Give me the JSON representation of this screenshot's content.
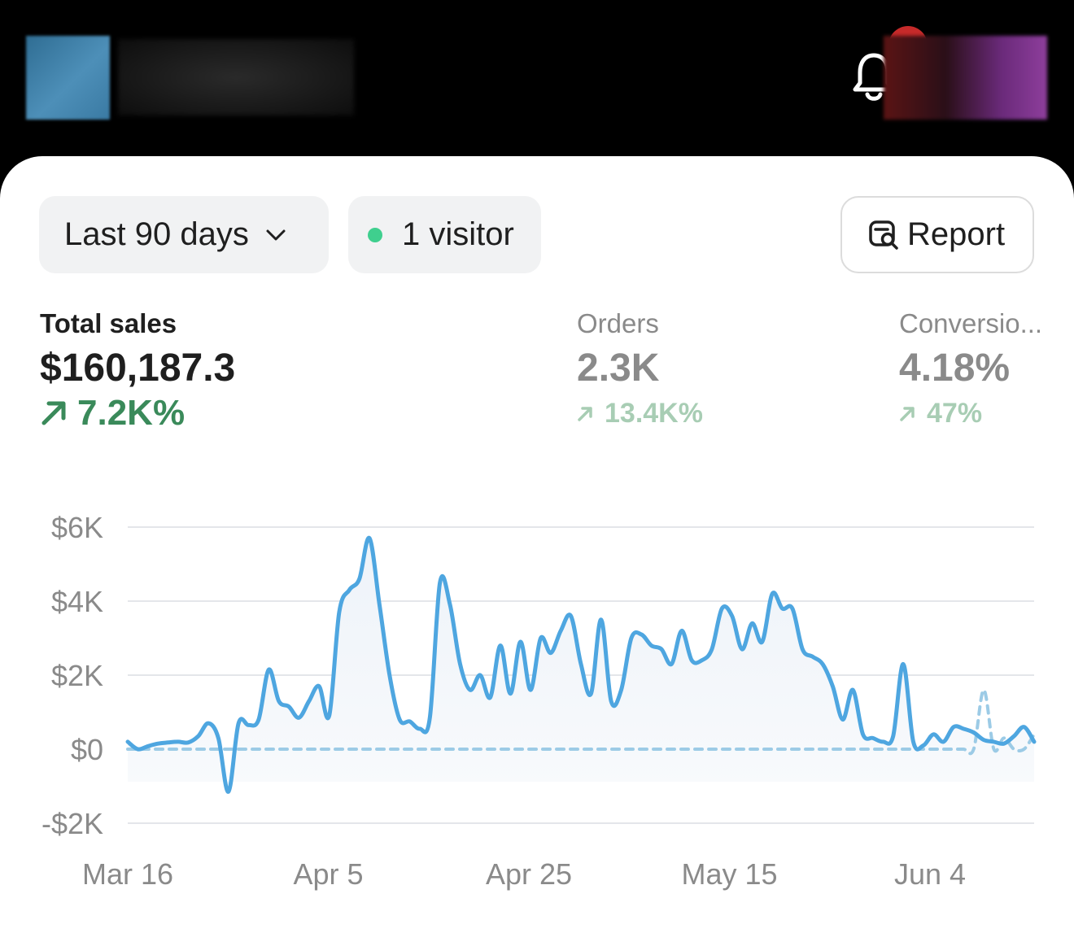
{
  "header": {
    "store_avatar_icon": "store-avatar-blurred",
    "bell_icon": "bell-icon",
    "account_avatar_icon": "account-avatar-blurred"
  },
  "filters": {
    "date_range": "Last 90 days",
    "visitors": "1 visitor",
    "report_label": "Report",
    "visitor_dot_color": "#3fcf8e"
  },
  "metrics": {
    "total_sales": {
      "label": "Total sales",
      "value": "$160,187.3",
      "delta": "7.2K%"
    },
    "orders": {
      "label": "Orders",
      "value": "2.3K",
      "delta": "13.4K%"
    },
    "conversion": {
      "label": "Conversio...",
      "value": "4.18%",
      "delta": "47%"
    }
  },
  "chart_data": {
    "type": "line",
    "x_tick_labels": [
      "Mar 16",
      "Apr 5",
      "Apr 25",
      "May 15",
      "Jun 4"
    ],
    "y_tick_labels": [
      "$6K",
      "$4K",
      "$2K",
      "$0",
      "-$2K"
    ],
    "ylim": [
      -2000,
      6000
    ],
    "y_ticks": [
      6000,
      4000,
      2000,
      0,
      -2000
    ],
    "grid": true,
    "series": [
      {
        "style": "solid",
        "color": "#4ea6e0",
        "values": [
          200,
          0,
          80,
          150,
          180,
          200,
          180,
          350,
          700,
          300,
          -1150,
          700,
          650,
          800,
          2150,
          1300,
          1150,
          850,
          1300,
          1700,
          900,
          3700,
          4300,
          4600,
          5700,
          3900,
          2000,
          800,
          750,
          550,
          850,
          4500,
          3900,
          2300,
          1600,
          2000,
          1400,
          2800,
          1500,
          2900,
          1600,
          3000,
          2600,
          3200,
          3600,
          2300,
          1500,
          3500,
          1300,
          1600,
          3000,
          3100,
          2800,
          2700,
          2300,
          3200,
          2400,
          2400,
          2700,
          3800,
          3600,
          2700,
          3400,
          2900,
          4200,
          3800,
          3800,
          2700,
          2500,
          2300,
          1700,
          800,
          1600,
          400,
          300,
          200,
          350,
          2300,
          200,
          100,
          400,
          200,
          600,
          550,
          450,
          250,
          200,
          150,
          350,
          600,
          200
        ]
      },
      {
        "style": "dashed",
        "color": "#9ccbe6",
        "values": [
          0,
          0,
          0,
          0,
          0,
          0,
          0,
          0,
          0,
          0,
          0,
          0,
          0,
          0,
          0,
          0,
          0,
          0,
          0,
          0,
          0,
          0,
          0,
          0,
          0,
          0,
          0,
          0,
          0,
          0,
          0,
          0,
          0,
          0,
          0,
          0,
          0,
          0,
          0,
          0,
          0,
          0,
          0,
          0,
          0,
          0,
          0,
          0,
          0,
          0,
          0,
          0,
          0,
          0,
          0,
          0,
          0,
          0,
          0,
          0,
          0,
          0,
          0,
          0,
          0,
          0,
          0,
          0,
          0,
          0,
          0,
          0,
          0,
          0,
          0,
          0,
          0,
          0,
          0,
          0,
          0,
          0,
          0,
          0,
          0,
          1600,
          0,
          300,
          0,
          0,
          400
        ]
      }
    ]
  }
}
